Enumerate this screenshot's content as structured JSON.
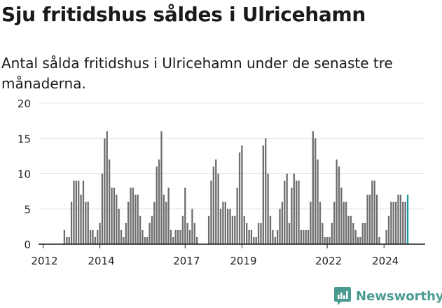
{
  "header": {
    "title": "Sju fritidshus såldes i Ulricehamn",
    "subtitle": "Antal sålda fritidshus i Ulricehamn under de senaste tre månaderna."
  },
  "brand": {
    "name": "Newsworthy"
  },
  "colors": {
    "bar": "#6d6d6f",
    "highlight": "#1a9c9c",
    "grid": "#e4e4e4",
    "axis": "#1a1a1a",
    "brand": "#4a9b8f"
  },
  "chart_data": {
    "type": "bar",
    "title": "",
    "xlabel": "",
    "ylabel": "",
    "ylim": [
      0,
      20
    ],
    "yticks": [
      0,
      5,
      10,
      15,
      20
    ],
    "xtick_labels": [
      {
        "label": "2012",
        "index": 0
      },
      {
        "label": "2014",
        "index": 24
      },
      {
        "label": "2017",
        "index": 60
      },
      {
        "label": "2019",
        "index": 84
      },
      {
        "label": "2022",
        "index": 120
      },
      {
        "label": "2024",
        "index": 144
      }
    ],
    "grid": true,
    "values": [
      0,
      0,
      0,
      0,
      0,
      0,
      0,
      0,
      0,
      2,
      1,
      1,
      6,
      9,
      9,
      9,
      7,
      9,
      6,
      6,
      2,
      2,
      1,
      2,
      3,
      10,
      15,
      16,
      12,
      8,
      8,
      7,
      5,
      2,
      1,
      3,
      6,
      8,
      8,
      7,
      7,
      4,
      2,
      1,
      1,
      3,
      4,
      6,
      11,
      12,
      16,
      7,
      6,
      8,
      2,
      1,
      2,
      2,
      2,
      4,
      8,
      3,
      2,
      5,
      3,
      1,
      0,
      0,
      0,
      0,
      4,
      9,
      11,
      12,
      10,
      5,
      6,
      6,
      5,
      5,
      4,
      4,
      8,
      13,
      14,
      4,
      3,
      2,
      2,
      1,
      1,
      3,
      3,
      14,
      15,
      10,
      4,
      2,
      1,
      2,
      5,
      6,
      9,
      10,
      3,
      8,
      10,
      9,
      9,
      2,
      2,
      2,
      2,
      6,
      16,
      15,
      12,
      6,
      3,
      1,
      1,
      1,
      3,
      6,
      12,
      11,
      8,
      6,
      6,
      4,
      4,
      3,
      2,
      1,
      1,
      3,
      3,
      7,
      7,
      9,
      9,
      7,
      1,
      0,
      0,
      2,
      4,
      6,
      6,
      6,
      7,
      7,
      6,
      6,
      7
    ],
    "highlight_last": true,
    "annotations": [
      {
        "label": "7",
        "index": 155
      }
    ]
  }
}
